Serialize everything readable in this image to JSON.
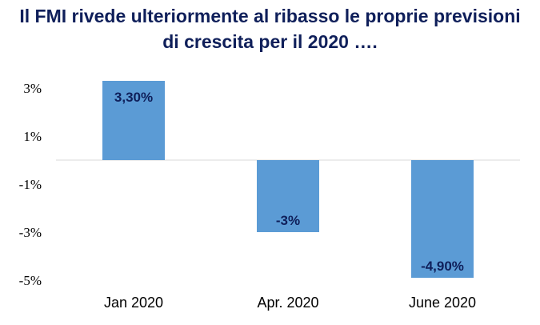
{
  "chart_data": {
    "type": "bar",
    "title": "Il FMI rivede ulteriormente al ribasso le proprie previsioni di crescita per il 2020 ….",
    "title_lines": [
      "Il FMI rivede ulteriormente al ribasso le proprie previsioni",
      "di crescita per il 2020 …."
    ],
    "categories": [
      "Jan 2020",
      "Apr. 2020",
      "June 2020"
    ],
    "values": [
      3.3,
      -3.0,
      -4.9
    ],
    "data_labels": [
      "3,30%",
      "-3%",
      "-4,90%"
    ],
    "y_ticks": [
      3,
      1,
      -1,
      -3,
      -5
    ],
    "y_tick_labels": [
      "3%",
      "1%",
      "-1%",
      "-3%",
      "-5%"
    ],
    "ylim": [
      -5,
      3.5
    ],
    "xlabel": "",
    "ylabel": "",
    "grid": false,
    "bar_color": "#5b9bd5",
    "label_color": "#0f1f5a"
  }
}
